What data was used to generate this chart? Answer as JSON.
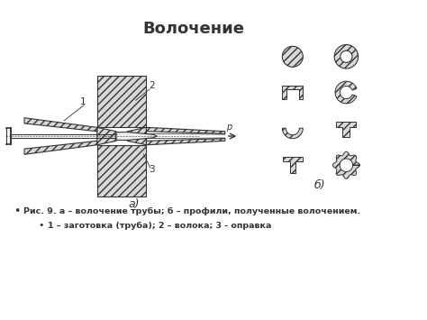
{
  "title": "Волочение",
  "title_fontsize": 13,
  "title_fontweight": "bold",
  "label_a": "а)",
  "label_b": "б)",
  "label_1": "1",
  "label_2": "2",
  "label_3": "3",
  "label_p": "р",
  "caption_line1": "Рис. 9. а – волочение трубы; б – профили, полученные волочением.",
  "caption_line2": "1 – заготовка (труба); 2 – волока; 3 - оправка",
  "bg_color": "#ffffff",
  "line_color": "#333333",
  "fig_width": 4.74,
  "fig_height": 3.55,
  "dpi": 100
}
